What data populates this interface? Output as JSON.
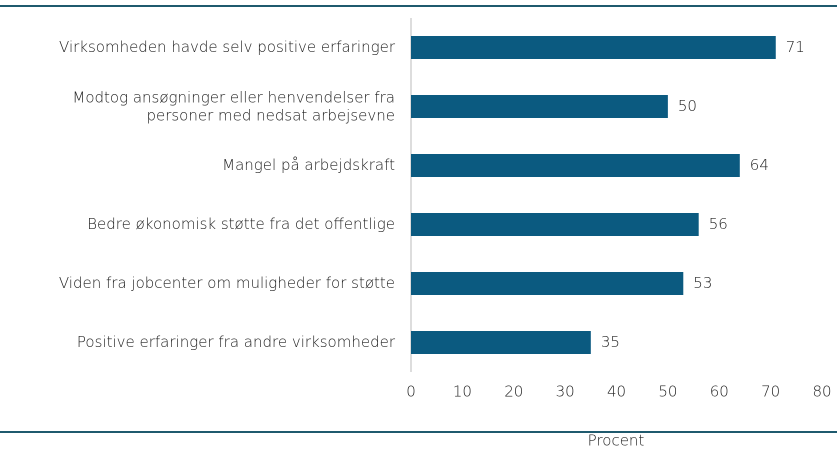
{
  "chart_data": {
    "type": "bar",
    "orientation": "horizontal",
    "categories": [
      "Virksomheden havde selv positive erfaringer",
      "Modtog ansøgninger eller henvendelser fra\npersoner med nedsat arbejsevne",
      "Mangel på arbejdskraft",
      "Bedre økonomisk støtte fra det offentlige",
      "Viden fra jobcenter om muligheder for støtte",
      "Positive erfaringer fra andre virksomheder"
    ],
    "values": [
      71,
      50,
      64,
      56,
      53,
      35
    ],
    "color": "#0b5a80",
    "xlabel": "Procent",
    "xlim": [
      0,
      80
    ],
    "xticks": [
      0,
      10,
      20,
      30,
      40,
      50,
      60,
      70,
      80
    ],
    "grid": false
  }
}
